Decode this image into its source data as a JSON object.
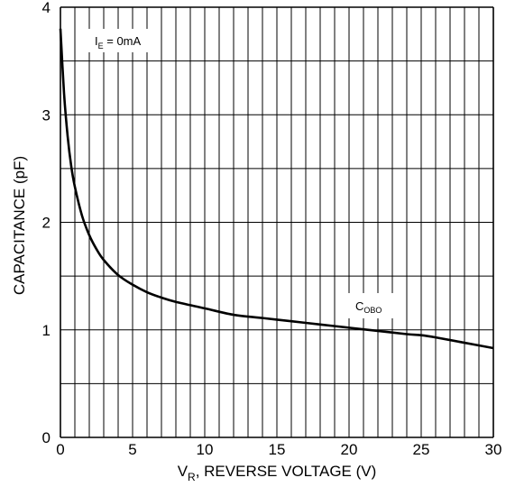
{
  "chart_data": {
    "type": "line",
    "title": "",
    "xlabel": {
      "main": "V",
      "sub": "R",
      "rest": ", REVERSE VOLTAGE (V)"
    },
    "ylabel": "CAPACITANCE (pF)",
    "xlim": [
      0,
      30
    ],
    "ylim": [
      0,
      4
    ],
    "x_ticks": [
      "0",
      "5",
      "10",
      "15",
      "20",
      "25",
      "30"
    ],
    "y_ticks": [
      "0",
      "1",
      "2",
      "3",
      "4"
    ],
    "grid": true,
    "condition": {
      "main": "I",
      "sub": "E",
      "rest": " = 0mA"
    },
    "series": [
      {
        "name": {
          "main": "C",
          "sub": "OBO"
        },
        "x": [
          0,
          0.25,
          0.5,
          0.75,
          1,
          1.5,
          2,
          2.5,
          3,
          4,
          5,
          6,
          7,
          8,
          10,
          12,
          14,
          16,
          18,
          20,
          22,
          24,
          25,
          26,
          28,
          30
        ],
        "y": [
          3.8,
          3.2,
          2.8,
          2.52,
          2.33,
          2.06,
          1.88,
          1.75,
          1.65,
          1.51,
          1.42,
          1.35,
          1.3,
          1.26,
          1.2,
          1.14,
          1.11,
          1.08,
          1.05,
          1.02,
          0.99,
          0.96,
          0.95,
          0.93,
          0.88,
          0.83
        ]
      }
    ]
  }
}
